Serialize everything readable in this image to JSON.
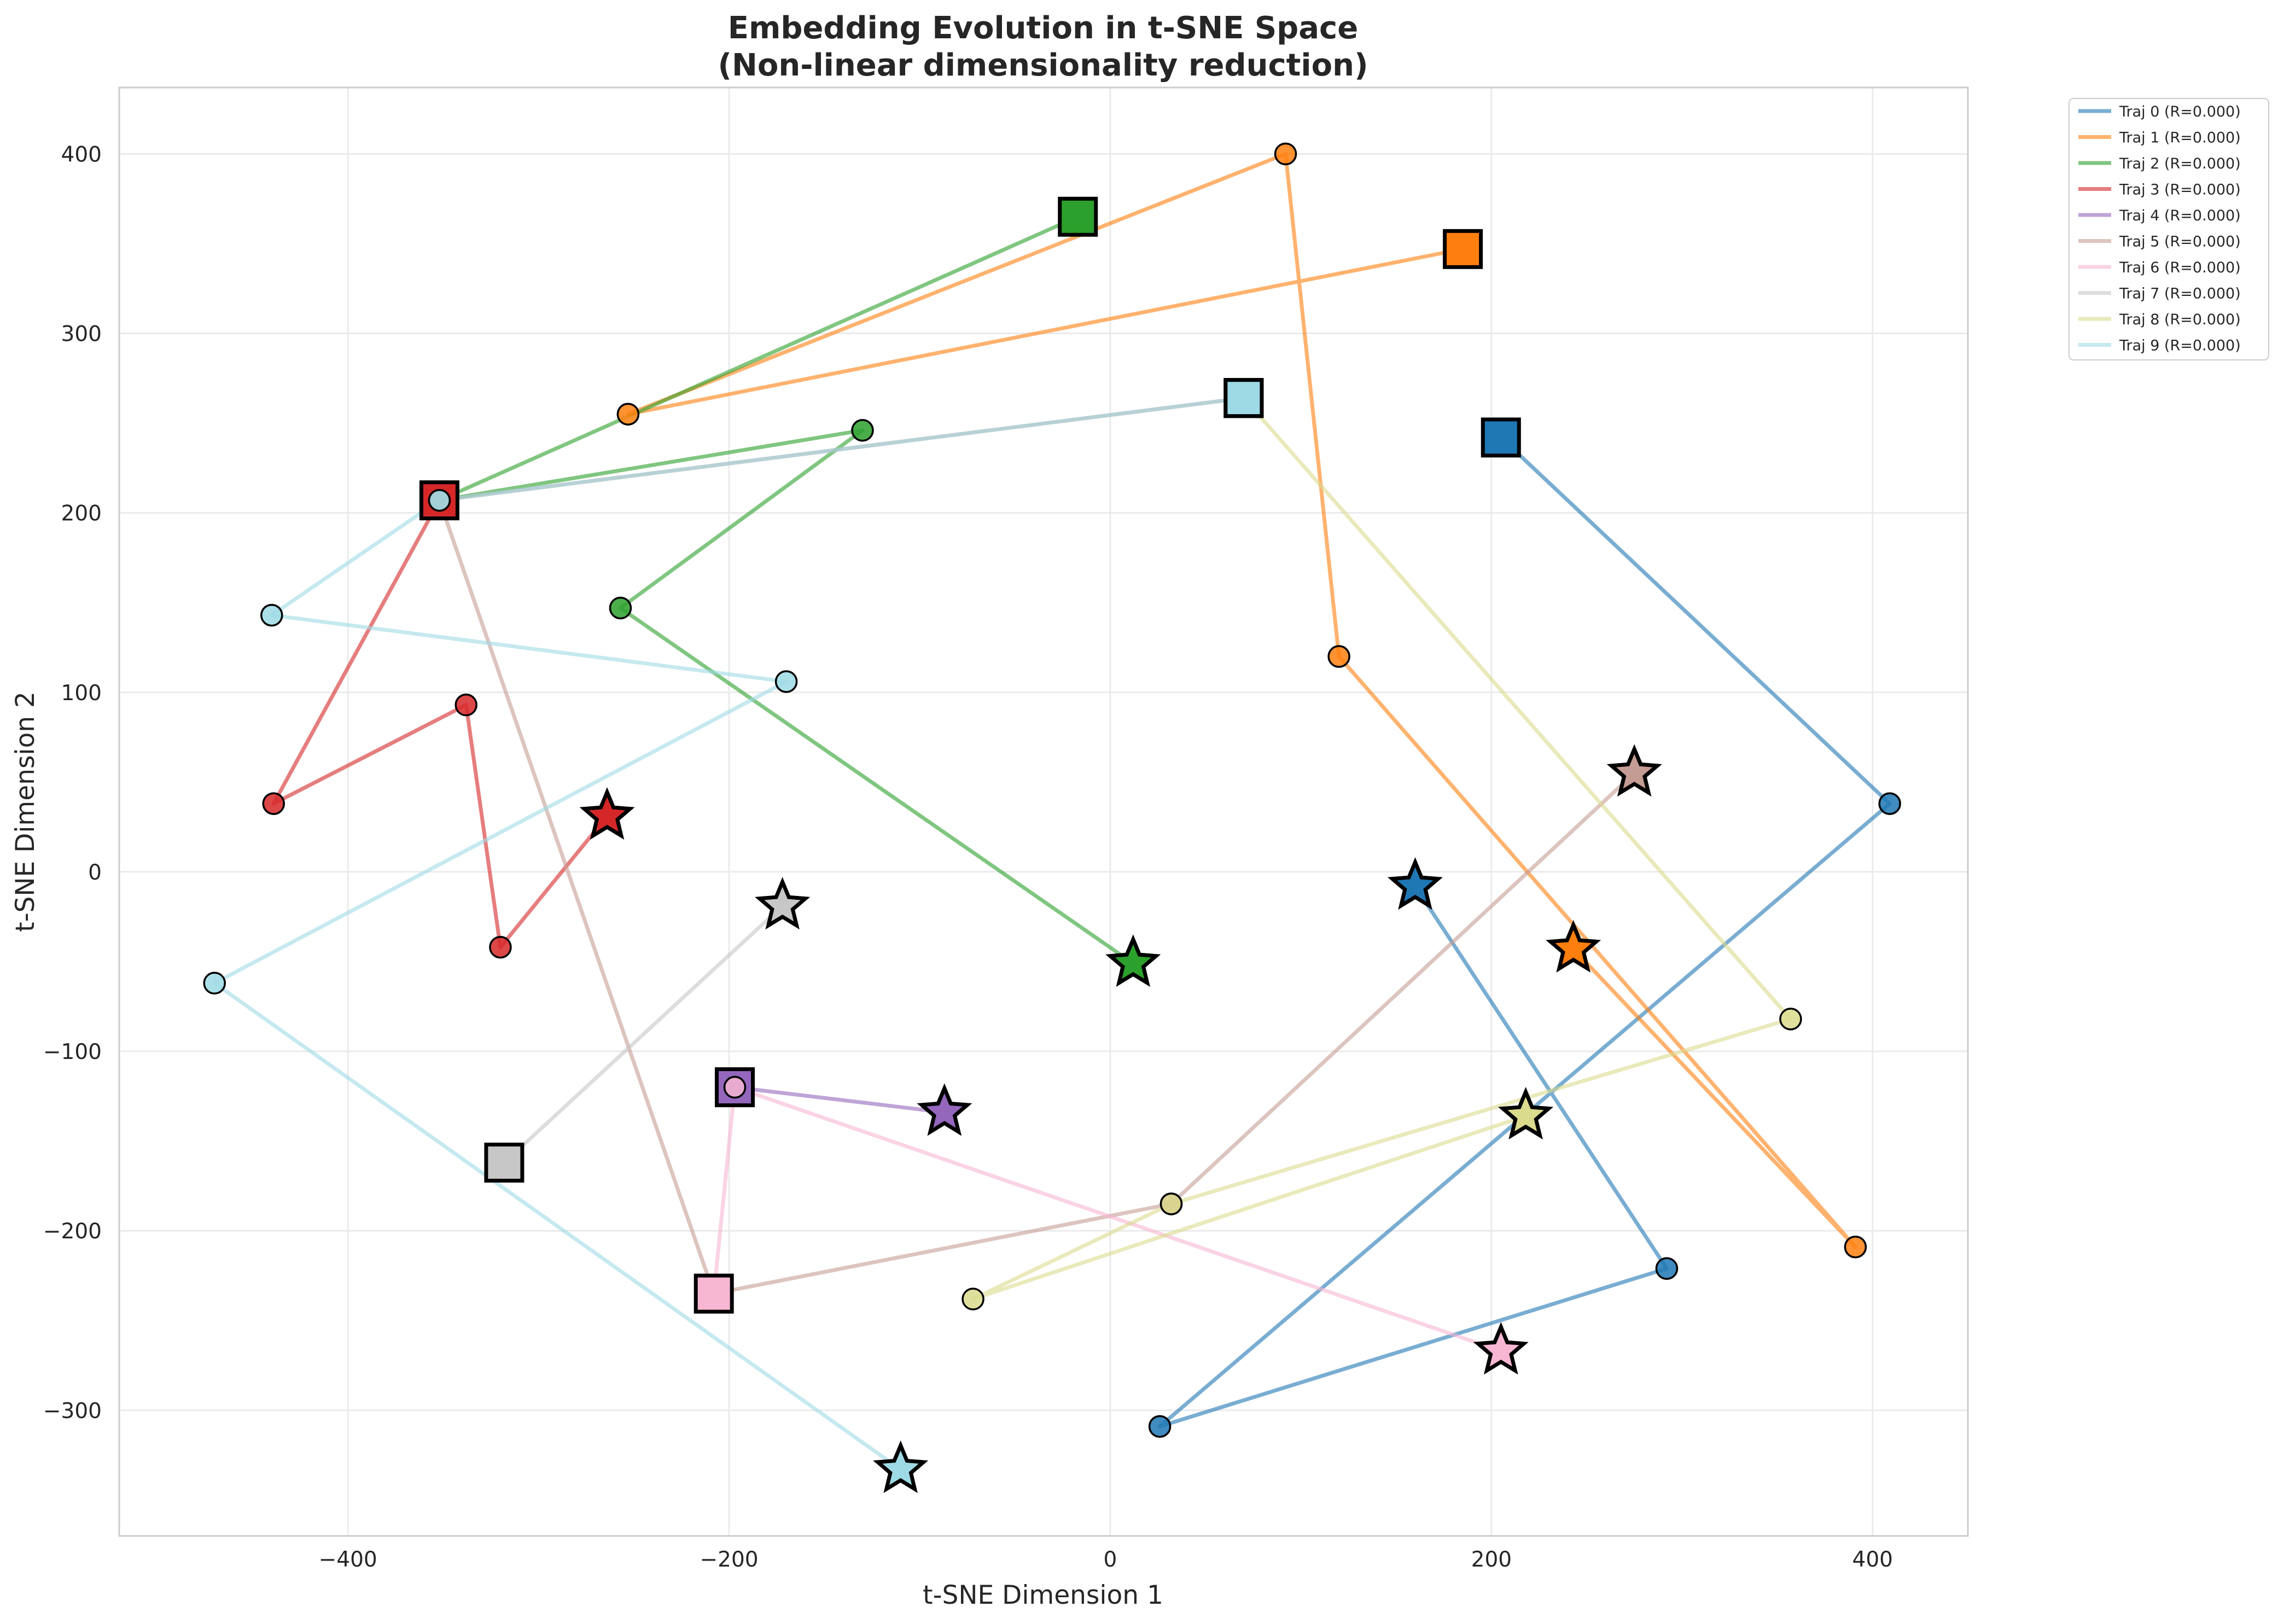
{
  "chart_data": {
    "type": "line",
    "title": "Embedding Evolution in t-SNE Space",
    "subtitle": "(Non-linear dimensionality reduction)",
    "xlabel": "t-SNE Dimension 1",
    "ylabel": "t-SNE Dimension 2",
    "xlim": [
      -520,
      450
    ],
    "ylim": [
      -370,
      437
    ],
    "xticks": [
      -400,
      -200,
      0,
      200,
      400
    ],
    "yticks": [
      -300,
      -200,
      -100,
      0,
      100,
      200,
      300,
      400
    ],
    "xtick_labels": [
      "−400",
      "−200",
      "0",
      "200",
      "400"
    ],
    "ytick_labels": [
      "−300",
      "−200",
      "−100",
      "0",
      "100",
      "200",
      "300",
      "400"
    ],
    "grid": true,
    "legend_position": "outside-top-right",
    "markers": {
      "start": "square",
      "intermediate": "circle",
      "end": "star"
    },
    "series": [
      {
        "name": "Traj 0 (R=0.000)",
        "color": "#1f77b4",
        "points": [
          [
            205,
            242
          ],
          [
            409,
            38
          ],
          [
            26,
            -309
          ],
          [
            292,
            -221
          ],
          [
            160,
            -8
          ]
        ]
      },
      {
        "name": "Traj 1 (R=0.000)",
        "color": "#ff7f0e",
        "points": [
          [
            185,
            347
          ],
          [
            -253,
            255
          ],
          [
            92,
            400
          ],
          [
            120,
            120
          ],
          [
            391,
            -209
          ],
          [
            243,
            -43
          ]
        ]
      },
      {
        "name": "Traj 2 (R=0.000)",
        "color": "#2ca02c",
        "points": [
          [
            -17,
            365
          ],
          [
            -352,
            207
          ],
          [
            -130,
            246
          ],
          [
            -257,
            147
          ],
          [
            12,
            -51
          ]
        ]
      },
      {
        "name": "Traj 3 (R=0.000)",
        "color": "#d62728",
        "points": [
          [
            -352,
            207
          ],
          [
            -439,
            38
          ],
          [
            -338,
            93
          ],
          [
            -320,
            -42
          ],
          [
            -264,
            31
          ]
        ]
      },
      {
        "name": "Traj 4 (R=0.000)",
        "color": "#9467bd",
        "points": [
          [
            -197,
            -120
          ],
          [
            -87,
            -134
          ]
        ]
      },
      {
        "name": "Traj 5 (R=0.000)",
        "color": "#c49c94",
        "points": [
          [
            70,
            264
          ],
          [
            -352,
            207
          ],
          [
            -208,
            -235
          ],
          [
            32,
            -185
          ],
          [
            275,
            55
          ]
        ]
      },
      {
        "name": "Traj 6 (R=0.000)",
        "color": "#f7b6d2",
        "points": [
          [
            -208,
            -235
          ],
          [
            -197,
            -120
          ],
          [
            205,
            -267
          ]
        ]
      },
      {
        "name": "Traj 7 (R=0.000)",
        "color": "#c7c7c7",
        "points": [
          [
            -318,
            -162
          ],
          [
            -172,
            -19
          ]
        ]
      },
      {
        "name": "Traj 8 (R=0.000)",
        "color": "#dbdb8d",
        "points": [
          [
            70,
            264
          ],
          [
            357,
            -82
          ],
          [
            32,
            -185
          ],
          [
            -72,
            -238
          ],
          [
            218,
            -136
          ]
        ]
      },
      {
        "name": "Traj 9 (R=0.000)",
        "color": "#9edae5",
        "points": [
          [
            70,
            264
          ],
          [
            -352,
            207
          ],
          [
            -440,
            143
          ],
          [
            -170,
            106
          ],
          [
            -470,
            -62
          ],
          [
            -110,
            -333
          ]
        ]
      }
    ]
  }
}
